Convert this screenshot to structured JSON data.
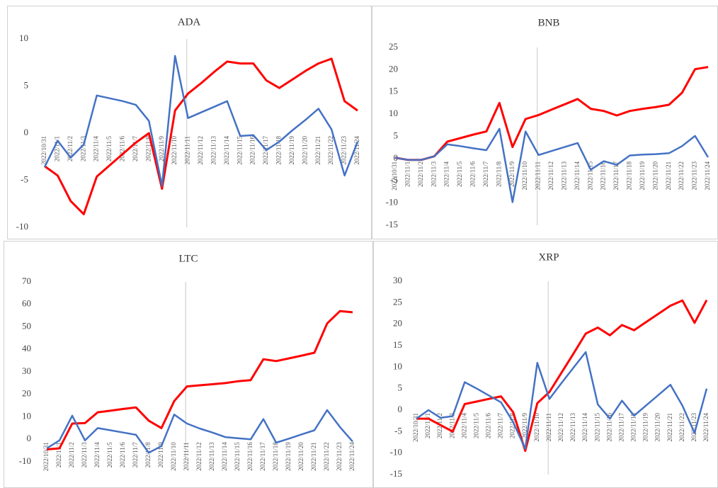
{
  "chart_data": [
    {
      "type": "line",
      "title": "ADA",
      "categories": [
        "2022/10/31",
        "2022/11/1",
        "2022/11/2",
        "2022/11/3",
        "2022/11/4",
        "2022/11/5",
        "2022/11/6",
        "2022/11/7",
        "2022/11/8",
        "2022/11/9",
        "2022/11/10",
        "2022/11/11",
        "2022/11/12",
        "2022/11/13",
        "2022/11/14",
        "2022/11/15",
        "2022/11/16",
        "2022/11/17",
        "2022/11/18",
        "2022/11/19",
        "2022/11/20",
        "2022/11/21",
        "2022/11/22",
        "2022/11/23",
        "2022/11/24"
      ],
      "series": [
        {
          "color": "#ff0000",
          "values": [
            -3.5,
            -4.5,
            -7.2,
            -8.6,
            -4.6,
            -3.4,
            -2.2,
            -1,
            0,
            -5.9,
            2.4,
            4.2,
            5.3,
            6.5,
            7.6,
            7.4,
            7.4,
            5.6,
            4.8,
            5.7,
            6.6,
            7.4,
            7.9,
            3.4,
            2.4
          ]
        },
        {
          "color": "#4472c4",
          "values": [
            -3.6,
            -0.8,
            -2.6,
            -1.2,
            4.0,
            3.7,
            3.4,
            3.0,
            1.3,
            -5.6,
            8.2,
            1.6,
            2.2,
            2.8,
            3.4,
            -0.3,
            -0.2,
            -1.8,
            -0.9,
            0.3,
            1.4,
            2.6,
            0.4,
            -4.5,
            -0.9
          ]
        }
      ],
      "ylim": [
        -10,
        10
      ],
      "yticks": [
        -10,
        -5,
        0,
        5,
        10
      ]
    },
    {
      "type": "line",
      "title": "BNB",
      "categories": [
        "2022/10/31",
        "2022/11/1",
        "2022/11/2",
        "2022/11/3",
        "2022/11/4",
        "2022/11/5",
        "2022/11/6",
        "2022/11/7",
        "2022/11/8",
        "2022/11/9",
        "2022/11/10",
        "2022/11/11",
        "2022/11/12",
        "2022/11/13",
        "2022/11/14",
        "2022/11/15",
        "2022/11/16",
        "2022/11/17",
        "2022/11/18",
        "2022/11/19",
        "2022/11/20",
        "2022/11/21",
        "2022/11/22",
        "2022/11/23",
        "2022/11/24"
      ],
      "series": [
        {
          "color": "#ff0000",
          "values": [
            0.2,
            -0.3,
            -0.3,
            0.5,
            3.8,
            4.6,
            5.4,
            6.1,
            12.5,
            2.6,
            8.9,
            9.8,
            11,
            12.2,
            13.4,
            11.2,
            10.7,
            9.7,
            10.7,
            11.2,
            11.6,
            12.1,
            14.8,
            20.1,
            20.6
          ]
        },
        {
          "color": "#4472c4",
          "values": [
            0.2,
            -0.3,
            -0.3,
            0.5,
            3.2,
            2.8,
            2.3,
            1.9,
            6.7,
            -9.8,
            6.1,
            0.8,
            1.7,
            2.6,
            3.5,
            -2.5,
            -0.6,
            -1.4,
            0.7,
            0.9,
            1.0,
            1.2,
            2.8,
            5.1,
            0.3
          ]
        }
      ],
      "ylim": [
        -15,
        25
      ],
      "yticks": [
        -15,
        -10,
        -5,
        0,
        5,
        10,
        15,
        20,
        25
      ]
    },
    {
      "type": "line",
      "title": "LTC",
      "categories": [
        "2022/10/31",
        "2022/11/1",
        "2022/11/2",
        "2022/11/3",
        "2022/11/4",
        "2022/11/5",
        "2022/11/6",
        "2022/11/7",
        "2022/11/8",
        "2022/11/9",
        "2022/11/10",
        "2022/11/11",
        "2022/11/12",
        "2022/11/13",
        "2022/11/14",
        "2022/11/15",
        "2022/11/16",
        "2022/11/17",
        "2022/11/18",
        "2022/11/19",
        "2022/11/20",
        "2022/11/21",
        "2022/11/22",
        "2022/11/23",
        "2022/11/24"
      ],
      "series": [
        {
          "color": "#ff0000",
          "values": [
            -4.5,
            -4,
            7,
            7.2,
            12,
            12.7,
            13.5,
            14.2,
            8.3,
            5,
            17,
            23.5,
            24,
            24.5,
            25,
            25.8,
            26.3,
            35.6,
            34.8,
            36,
            37.2,
            38.5,
            51.5,
            57,
            56.5
          ]
        },
        {
          "color": "#4472c4",
          "values": [
            -4,
            -0.5,
            10.5,
            -0.5,
            5,
            4,
            3,
            2,
            -6,
            -3,
            11,
            7,
            4.8,
            3,
            1,
            0.5,
            0,
            9,
            -1.5,
            0.3,
            2.2,
            4,
            13,
            5.5,
            -1
          ]
        }
      ],
      "ylim": [
        -10,
        70
      ],
      "yticks": [
        -10,
        0,
        10,
        20,
        30,
        40,
        50,
        60,
        70
      ]
    },
    {
      "type": "line",
      "title": "XRP",
      "categories": [
        "2022/10/31",
        "2022/11/1",
        "2022/11/2",
        "2022/11/3",
        "2022/11/4",
        "2022/11/5",
        "2022/11/6",
        "2022/11/7",
        "2022/11/8",
        "2022/11/9",
        "2022/11/10",
        "2022/11/11",
        "2022/11/12",
        "2022/11/13",
        "2022/11/14",
        "2022/11/15",
        "2022/11/16",
        "2022/11/17",
        "2022/11/18",
        "2022/11/19",
        "2022/11/20",
        "2022/11/21",
        "2022/11/22",
        "2022/11/23",
        "2022/11/24"
      ],
      "series": [
        {
          "color": "#ff0000",
          "values": [
            -2,
            -2,
            -3.5,
            -5,
            1.4,
            2,
            2.6,
            3.2,
            -0.5,
            -9.5,
            1.6,
            4.2,
            8.7,
            13.2,
            17.8,
            19.2,
            17.4,
            19.8,
            18.6,
            20.5,
            22.4,
            24.3,
            25.5,
            20.3,
            25.6
          ]
        },
        {
          "color": "#4472c4",
          "values": [
            -2,
            0,
            -1.8,
            -1.4,
            6.5,
            5,
            3.4,
            1.8,
            -2.8,
            -9,
            11,
            2.6,
            6.3,
            9.9,
            13.5,
            1.3,
            -2,
            2.2,
            -1.3,
            1.1,
            3.5,
            5.9,
            1,
            -5.3,
            5
          ]
        }
      ],
      "ylim": [
        -15,
        30
      ],
      "yticks": [
        -15,
        -10,
        -5,
        0,
        5,
        10,
        15,
        20,
        25,
        30
      ]
    }
  ]
}
